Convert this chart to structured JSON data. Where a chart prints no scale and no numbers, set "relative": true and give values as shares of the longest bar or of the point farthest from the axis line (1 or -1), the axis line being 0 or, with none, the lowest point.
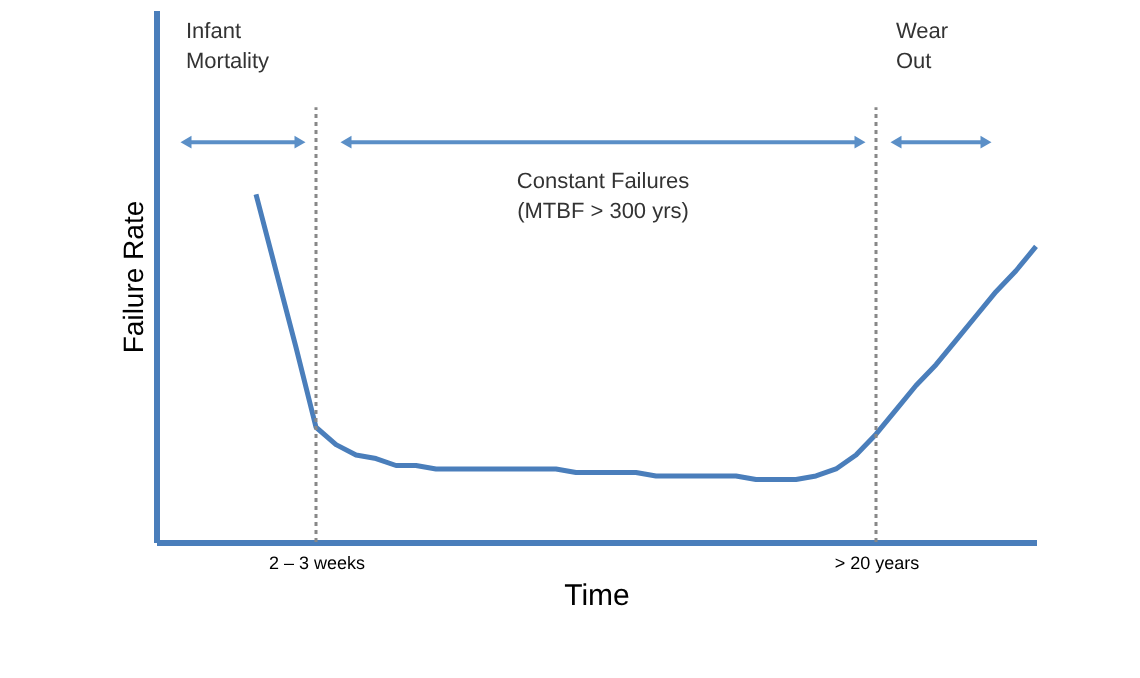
{
  "chart_data": {
    "type": "line",
    "relative": true,
    "xlabel": "Time",
    "ylabel": "Failure Rate",
    "categories": [
      null,
      null,
      null,
      null,
      null,
      null,
      null,
      null,
      "2 – 3 weeks",
      null,
      null,
      null,
      null,
      null,
      null,
      null,
      null,
      null,
      null,
      null,
      null,
      null,
      null,
      null,
      null,
      null,
      null,
      null,
      null,
      null,
      null,
      null,
      null,
      null,
      null,
      null,
      "> 20 years",
      null,
      null,
      null,
      null,
      null,
      null,
      null,
      null
    ],
    "series": [
      {
        "color": "#4a7ebb",
        "values": [
          null,
          null,
          null,
          null,
          null,
          1.0,
          0.78,
          0.56,
          0.33,
          0.28,
          0.25,
          0.24,
          0.22,
          0.22,
          0.21,
          0.21,
          0.21,
          0.21,
          0.21,
          0.21,
          0.21,
          0.2,
          0.2,
          0.2,
          0.2,
          0.19,
          0.19,
          0.19,
          0.19,
          0.19,
          0.18,
          0.18,
          0.18,
          0.19,
          0.21,
          0.25,
          0.31,
          0.38,
          0.45,
          0.51,
          0.58,
          0.65,
          0.72,
          0.78,
          0.85
        ]
      }
    ],
    "ref_lines": [
      {
        "axis": "x",
        "value": "2 – 3 weeks",
        "color": "#888888",
        "line_style": "dotted"
      },
      {
        "axis": "x",
        "value": "> 20 years",
        "color": "#888888",
        "line_style": "dotted"
      }
    ],
    "annotations": [
      "Infant\nMortality",
      "Constant Failures\n(MTBF > 300 yrs)",
      "Wear\nOut"
    ],
    "grid": false,
    "marker": "none",
    "line_style": "solid"
  }
}
